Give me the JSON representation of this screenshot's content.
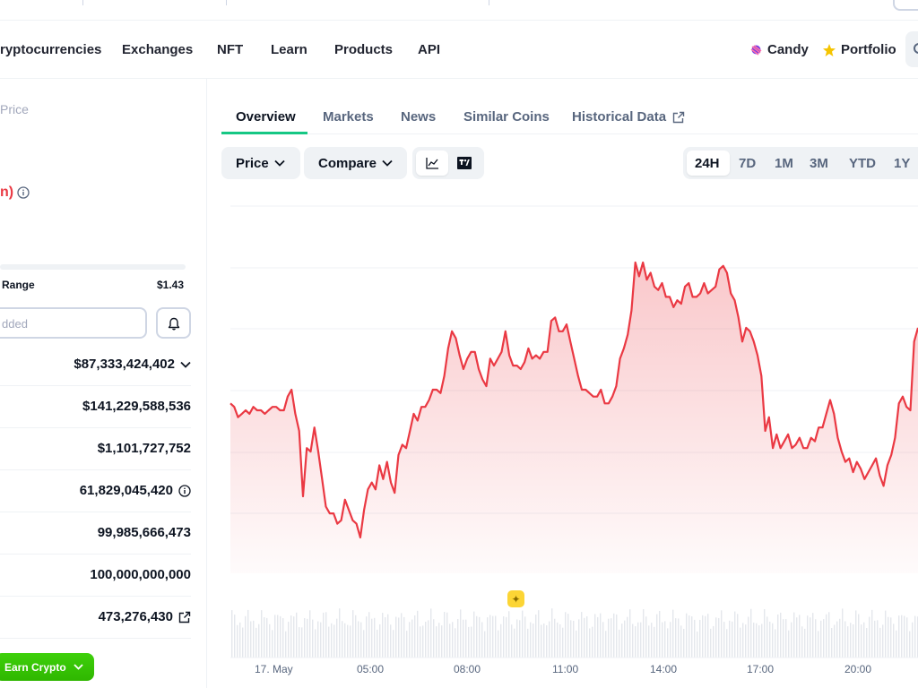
{
  "nav": {
    "items": [
      "ryptocurrencies",
      "Exchanges",
      "NFT",
      "Learn",
      "Products",
      "API"
    ],
    "candy": "Candy",
    "portfolio": "Portfolio"
  },
  "left": {
    "price_label": "Price",
    "change_fragment": "n)",
    "range_label": "Range",
    "range_value": "$1.43",
    "input_placeholder": "dded",
    "stats": [
      "$87,333,424,402",
      "$141,229,588,536",
      "$1,101,727,752",
      "61,829,045,420",
      "99,985,666,473",
      "100,000,000,000",
      "473,276,430"
    ],
    "earn_button": "Earn Crypto"
  },
  "tabs": [
    "Overview",
    "Markets",
    "News",
    "Similar Coins",
    "Historical Data"
  ],
  "controls": {
    "price": "Price",
    "compare": "Compare",
    "ranges": [
      "24H",
      "7D",
      "1M",
      "3M",
      "YTD",
      "1Y"
    ]
  },
  "colors": {
    "line": "#ea3943",
    "accent": "#16c784",
    "badge": "#fcd535"
  },
  "chart_data": {
    "type": "area",
    "x_tick_labels": [
      "17. May",
      "05:00",
      "08:00",
      "11:00",
      "14:00",
      "17:00",
      "20:00"
    ],
    "series": [
      {
        "values": [
          58,
          57,
          54,
          55,
          56,
          55,
          57,
          56,
          56,
          55,
          56,
          57,
          57,
          56,
          56,
          60,
          62,
          55,
          50,
          31,
          45,
          44,
          51,
          44,
          36,
          28,
          26,
          26,
          23,
          24,
          30,
          27,
          24,
          23,
          19,
          27,
          33,
          35,
          33,
          40,
          36,
          41,
          35,
          32,
          43,
          46,
          45,
          50,
          55,
          53,
          57,
          57,
          59,
          62,
          62,
          61,
          66,
          74,
          79,
          77,
          72,
          68,
          71,
          73,
          73,
          68,
          65,
          63,
          71,
          69,
          71,
          73,
          79,
          72,
          69,
          69,
          68,
          70,
          74,
          71,
          72,
          71,
          73,
          73,
          82,
          83,
          79,
          79,
          81,
          76,
          71,
          66,
          62,
          62,
          61,
          60,
          60,
          62,
          58,
          58,
          60,
          63,
          71,
          74,
          78,
          85,
          99,
          95,
          99,
          94,
          96,
          92,
          91,
          93,
          89,
          89,
          86,
          88,
          87,
          92,
          93,
          89,
          89,
          90,
          93,
          90,
          91,
          92,
          97,
          98,
          96,
          90,
          88,
          83,
          76,
          80,
          79,
          76,
          72,
          66,
          50,
          54,
          45,
          49,
          45,
          47,
          49,
          45,
          46,
          48,
          45,
          45,
          48,
          47,
          51,
          51,
          55,
          59,
          55,
          48,
          44,
          41,
          42,
          38,
          41,
          39,
          36,
          38,
          40,
          42,
          37,
          34,
          40,
          43,
          48,
          58,
          60,
          57,
          56,
          76,
          80
        ]
      }
    ]
  }
}
